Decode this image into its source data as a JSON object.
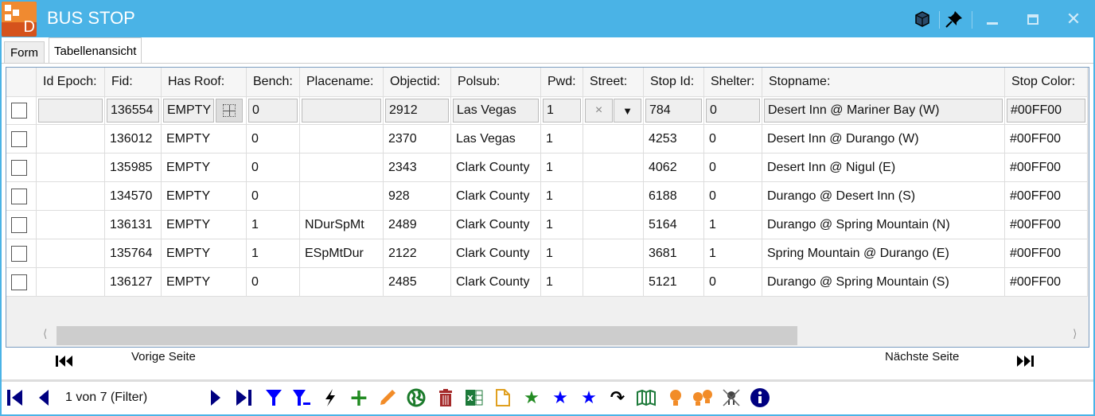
{
  "window": {
    "title": "BUS STOP",
    "logo_letter": "D"
  },
  "tabs": [
    {
      "label": "Form"
    },
    {
      "label": "Tabellenansicht",
      "active": true
    }
  ],
  "columns": [
    "Id Epoch:",
    "Fid:",
    "Has Roof:",
    "Bench:",
    "Placename:",
    "Objectid:",
    "Polsub:",
    "Pwd:",
    "Street:",
    "Stop Id:",
    "Shelter:",
    "Stopname:",
    "Stop Color:"
  ],
  "filter_row": [
    "",
    "136554",
    "EMPTY",
    "0",
    "",
    "2912",
    "Las Vegas",
    "1",
    "",
    "784",
    "0",
    "Desert Inn @ Mariner Bay (W)",
    "#00FF00"
  ],
  "street_filter": {
    "clear": "×",
    "dropdown": "▼"
  },
  "rows": [
    [
      "",
      "136012",
      "EMPTY",
      "0",
      "",
      "2370",
      "Las Vegas",
      "1",
      "",
      "4253",
      "0",
      "Desert Inn @ Durango (W)",
      "#00FF00"
    ],
    [
      "",
      "135985",
      "EMPTY",
      "0",
      "",
      "2343",
      "Clark County",
      "1",
      "",
      "4062",
      "0",
      "Desert Inn @ Nigul (E)",
      "#00FF00"
    ],
    [
      "",
      "134570",
      "EMPTY",
      "0",
      "",
      "928",
      "Clark County",
      "1",
      "",
      "6188",
      "0",
      "Durango @ Desert Inn (S)",
      "#00FF00"
    ],
    [
      "",
      "136131",
      "EMPTY",
      "1",
      "NDurSpMt",
      "2489",
      "Clark County",
      "1",
      "",
      "5164",
      "1",
      "Durango @ Spring Mountain (N)",
      "#00FF00"
    ],
    [
      "",
      "135764",
      "EMPTY",
      "1",
      "ESpMtDur",
      "2122",
      "Clark County",
      "1",
      "",
      "3681",
      "1",
      "Spring Mountain @ Durango (E)",
      "#00FF00"
    ],
    [
      "",
      "136127",
      "EMPTY",
      "0",
      "",
      "2485",
      "Clark County",
      "1",
      "",
      "5121",
      "0",
      "Durango @ Spring Mountain (S)",
      "#00FF00"
    ]
  ],
  "pager": {
    "prev": "Vorige Seite",
    "next": "Nächste Seite"
  },
  "status": "1 von 7 (Filter)",
  "colors": {
    "titlebar": "#4ab3e6",
    "nav": "#000080",
    "filter": "#0000ff",
    "green": "#228b22",
    "orange": "#f28c28",
    "red": "#a52a2a"
  }
}
